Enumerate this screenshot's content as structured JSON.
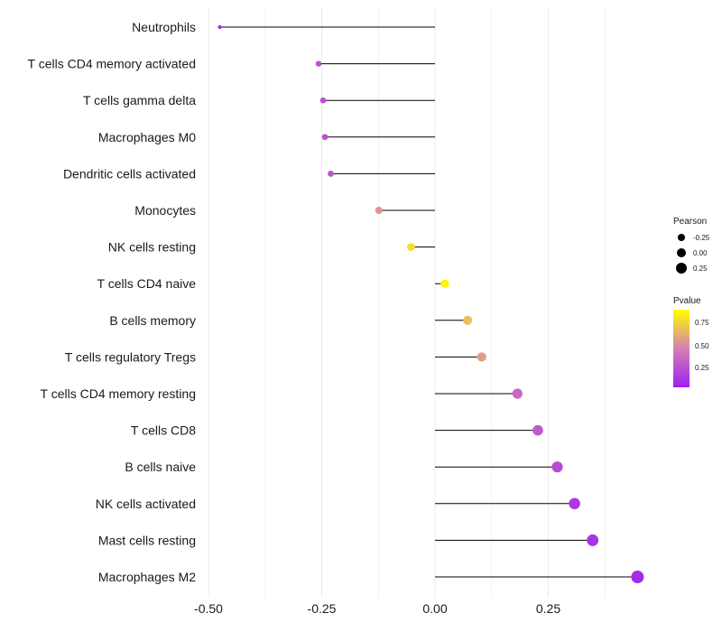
{
  "chart_data": {
    "type": "lollipop",
    "categories": [
      "Neutrophils",
      "T cells CD4 memory activated",
      "T cells gamma delta",
      "Macrophages M0",
      "Dendritic cells activated",
      "Monocytes",
      "NK cells resting",
      "T cells CD4 naive",
      "B cells memory",
      "T cells regulatory  Tregs ",
      "T cells CD4 memory resting",
      "T cells CD8",
      "B cells naive",
      "NK cells activated",
      "Mast cells resting",
      "Macrophages M2"
    ],
    "pearson": [
      -0.475,
      -0.257,
      -0.247,
      -0.243,
      -0.23,
      -0.124,
      -0.053,
      0.022,
      0.072,
      0.103,
      0.182,
      0.227,
      0.27,
      0.308,
      0.348,
      0.447
    ],
    "pvalue": [
      0.07,
      0.25,
      0.25,
      0.25,
      0.28,
      0.58,
      0.87,
      0.97,
      0.75,
      0.62,
      0.38,
      0.3,
      0.22,
      0.12,
      0.1,
      0.05
    ],
    "x_ticks": [
      "-0.50",
      "-0.25",
      "0.00",
      "0.25"
    ],
    "xlim": [
      -0.5,
      0.45
    ],
    "xlabel": "",
    "ylabel": "",
    "grid": "vertical",
    "legend": {
      "placement": "right",
      "size_title": "Pearson",
      "size_labels": [
        "-0.25",
        "0.00",
        "0.25"
      ],
      "color_title": "Pvalue",
      "color_labels": [
        "0.75",
        "0.50",
        "0.25"
      ],
      "color_low": "#a020f0",
      "color_mid": "#d67fb4",
      "color_high": "#ffff00"
    }
  }
}
